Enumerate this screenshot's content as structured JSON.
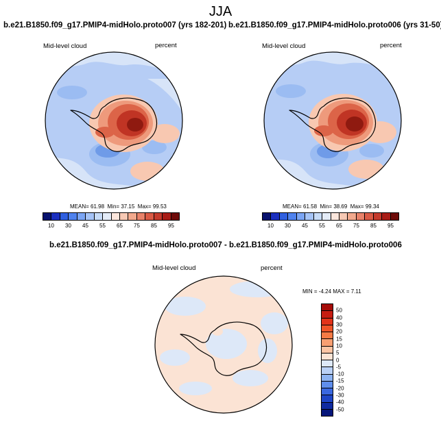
{
  "season": "JJA",
  "panels": [
    {
      "title": "b.e21.B1850.f09_g17.PMIP4-midHolo.proto007 (yrs 182-201)",
      "variable": "Mid-level cloud",
      "units": "percent",
      "stats": {
        "mean_label": "MEAN=",
        "mean": "61.98",
        "min_label": "Min=",
        "min": "37.15",
        "max_label": "Max=",
        "max": "99.53"
      }
    },
    {
      "title": "b.e21.B1850.f09_g17.PMIP4-midHolo.proto006 (yrs 31-50)",
      "variable": "Mid-level cloud",
      "units": "percent",
      "stats": {
        "mean_label": "MEAN=",
        "mean": "61.58",
        "min_label": "Min=",
        "min": "38.69",
        "max_label": "Max=",
        "max": "99.34"
      }
    },
    {
      "title": "b.e21.B1850.f09_g17.PMIP4-midHolo.proto007 - b.e21.B1850.f09_g17.PMIP4-midHolo.proto006",
      "variable": "Mid-level cloud",
      "units": "percent",
      "stats": {
        "min_label": "MIN =",
        "min": "-4.24",
        "max_label": "MAX =",
        "max": "7.11"
      }
    }
  ],
  "colorbar_main": {
    "labels": [
      "10",
      "30",
      "45",
      "55",
      "65",
      "75",
      "85",
      "95"
    ],
    "colors": [
      "#08126e",
      "#1b2fbf",
      "#2f5fe0",
      "#4f82ee",
      "#7ba5f4",
      "#a6c4f7",
      "#c8dcf8",
      "#e4ecf8",
      "#fbe6dc",
      "#f7c9b4",
      "#f2a98d",
      "#e8826a",
      "#d95a45",
      "#c43a2c",
      "#a81c16",
      "#6e0a08"
    ]
  },
  "colorbar_diff": {
    "labels": [
      "50",
      "40",
      "30",
      "20",
      "15",
      "10",
      "5",
      "0",
      "-5",
      "-10",
      "-15",
      "-20",
      "-30",
      "-40",
      "-50"
    ],
    "colors": [
      "#a50c09",
      "#c71d12",
      "#e2331a",
      "#f05428",
      "#f57a45",
      "#f89f72",
      "#fbc4a4",
      "#fbe3d4",
      "#dde8f8",
      "#b9d0f6",
      "#8db3f2",
      "#5f8eec",
      "#3a68e0",
      "#1e45c6",
      "#0f2aa0",
      "#06167a"
    ]
  },
  "map_colors": {
    "ocean_main": "#b6cdf5",
    "ocean_light": "#d7e4f8",
    "ocean_mid": "#9bbcf2",
    "ocean_deep": "#6f9be8",
    "warm1": "#f8c8b1",
    "warm2": "#ee9a7c",
    "warm3": "#dc6448",
    "warm4": "#c03424",
    "warm5": "#8f1a10",
    "diff_bg": "#fbe3d4",
    "diff_blue": "#dde8f8"
  }
}
